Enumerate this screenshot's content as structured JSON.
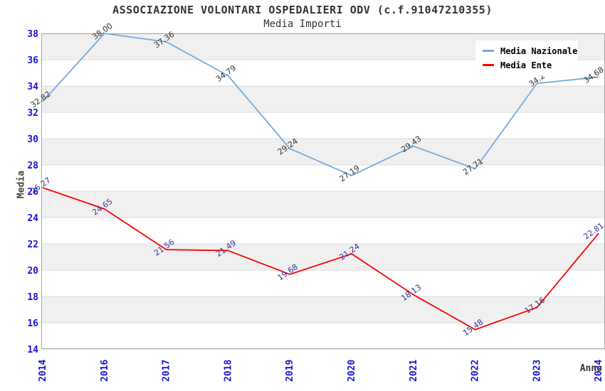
{
  "chart_data": {
    "type": "line",
    "title": "ASSOCIAZIONE VOLONTARI OSPEDALIERI ODV (c.f.91047210355)",
    "subtitle": "Media Importi",
    "xlabel": "Anno",
    "ylabel": "Media",
    "categories": [
      "2014",
      "2016",
      "2017",
      "2018",
      "2019",
      "2020",
      "2021",
      "2022",
      "2023",
      "2024"
    ],
    "series": [
      {
        "name": "Media Nazionale",
        "color": "#74A9DF",
        "label_color": "#333333",
        "values": [
          32.82,
          38.0,
          37.36,
          34.79,
          29.24,
          27.19,
          29.43,
          27.71,
          34.2,
          34.68
        ],
        "point_labels": [
          "32.82",
          "38.00",
          "37.36",
          "34.79",
          "29.24",
          "27.19",
          "29.43",
          "27.71",
          "34.2",
          "34.68"
        ]
      },
      {
        "name": "Media Ente",
        "color": "#FF0000",
        "label_color": "#333399",
        "values": [
          26.27,
          24.65,
          21.56,
          21.49,
          19.68,
          21.24,
          18.13,
          15.48,
          17.16,
          22.81
        ],
        "point_labels": [
          "26.27",
          "24.65",
          "21.56",
          "21.49",
          "19.68",
          "21.24",
          "18.13",
          "15.48",
          "17.16",
          "22.81"
        ]
      }
    ],
    "ylim": [
      14,
      38
    ],
    "yticks": [
      14,
      16,
      18,
      20,
      22,
      24,
      26,
      28,
      30,
      32,
      34,
      36,
      38
    ],
    "grid": "horizontal-bands-alternating",
    "legend_position": "top-right",
    "colors": {
      "band_gray": "#F0F0F0",
      "plot_background": "#FFFFFF",
      "gridline": "#DCDCDC",
      "plot_border": "#A9A9A9",
      "tick_label": "#1414CC",
      "axis_title": "#444444",
      "title_text": "#333333"
    }
  }
}
